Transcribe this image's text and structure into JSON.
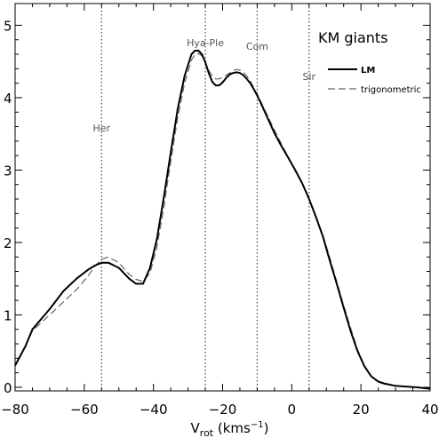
{
  "chart_data": {
    "type": "line",
    "title": "KM giants",
    "xlabel": {
      "main": "V",
      "sub": "rot",
      "unit": " (kms",
      "sup": "−1",
      "close": ")"
    },
    "ylabel": "",
    "xlim": [
      -80,
      40
    ],
    "ylim": [
      -0.05,
      5.3
    ],
    "xticks": [
      -80,
      -60,
      -40,
      -20,
      0,
      20,
      40
    ],
    "yticks": [
      0,
      1,
      2,
      3,
      4,
      5
    ],
    "grid": false,
    "legend_position": "top-right",
    "series": [
      {
        "name": "LM",
        "style": "solid",
        "color": "#000000",
        "x": [
          -80,
          -77,
          -75,
          -70,
          -66,
          -62,
          -59,
          -57,
          -55,
          -53,
          -50,
          -47,
          -45,
          -43,
          -41,
          -39,
          -37,
          -35,
          -33,
          -31,
          -29,
          -28,
          -27,
          -26,
          -25,
          -24,
          -23,
          -22,
          -21,
          -20,
          -19,
          -18,
          -17,
          -16,
          -15,
          -14,
          -13,
          -12,
          -11,
          -10,
          -9,
          -7,
          -5,
          -3,
          -1,
          1,
          3,
          5,
          7,
          9,
          11,
          13,
          15,
          17,
          19,
          21,
          23,
          25,
          27,
          30,
          33,
          36,
          40
        ],
        "y": [
          0.3,
          0.57,
          0.8,
          1.08,
          1.33,
          1.51,
          1.62,
          1.68,
          1.72,
          1.72,
          1.65,
          1.5,
          1.43,
          1.43,
          1.65,
          2.05,
          2.62,
          3.24,
          3.84,
          4.3,
          4.6,
          4.65,
          4.65,
          4.6,
          4.49,
          4.34,
          4.22,
          4.17,
          4.17,
          4.21,
          4.27,
          4.32,
          4.34,
          4.35,
          4.34,
          4.31,
          4.26,
          4.2,
          4.12,
          4.03,
          3.93,
          3.72,
          3.51,
          3.33,
          3.17,
          3.0,
          2.82,
          2.6,
          2.35,
          2.08,
          1.75,
          1.43,
          1.1,
          0.78,
          0.5,
          0.29,
          0.15,
          0.08,
          0.05,
          0.02,
          0.01,
          0.0,
          -0.02
        ]
      },
      {
        "name": "trigonometric",
        "style": "dashed",
        "color": "#666666",
        "x": [
          -80,
          -77,
          -75,
          -70,
          -66,
          -62,
          -59,
          -57,
          -55,
          -53,
          -50,
          -47,
          -45,
          -43,
          -41,
          -39,
          -37,
          -35,
          -33,
          -31,
          -29,
          -28,
          -27,
          -26,
          -25,
          -24,
          -23,
          -22,
          -21,
          -20,
          -19,
          -18,
          -17,
          -16,
          -15,
          -14,
          -13,
          -12,
          -11,
          -10,
          -9,
          -7,
          -5,
          -3,
          -1,
          1,
          3,
          5,
          7,
          9,
          11,
          13,
          15,
          17,
          19,
          21,
          23,
          25,
          27,
          30,
          33,
          36,
          40
        ],
        "y": [
          0.3,
          0.57,
          0.78,
          1.0,
          1.18,
          1.36,
          1.53,
          1.67,
          1.77,
          1.8,
          1.72,
          1.56,
          1.49,
          1.46,
          1.58,
          1.94,
          2.48,
          3.12,
          3.72,
          4.2,
          4.52,
          4.6,
          4.61,
          4.58,
          4.49,
          4.38,
          4.3,
          4.26,
          4.26,
          4.28,
          4.31,
          4.34,
          4.37,
          4.39,
          4.38,
          4.35,
          4.3,
          4.23,
          4.14,
          4.05,
          3.95,
          3.75,
          3.55,
          3.36,
          3.18,
          2.99,
          2.81,
          2.6,
          2.36,
          2.1,
          1.79,
          1.46,
          1.13,
          0.82,
          0.52,
          0.3,
          0.15,
          0.07,
          0.04,
          0.02,
          0.01,
          0.0,
          -0.02
        ]
      }
    ],
    "reference_lines": [
      {
        "label": "Her",
        "x": -55
      },
      {
        "label": "Hya-Ple",
        "x": -25
      },
      {
        "label": "Com",
        "x": -10
      },
      {
        "label": "Sir",
        "x": 5
      }
    ]
  }
}
